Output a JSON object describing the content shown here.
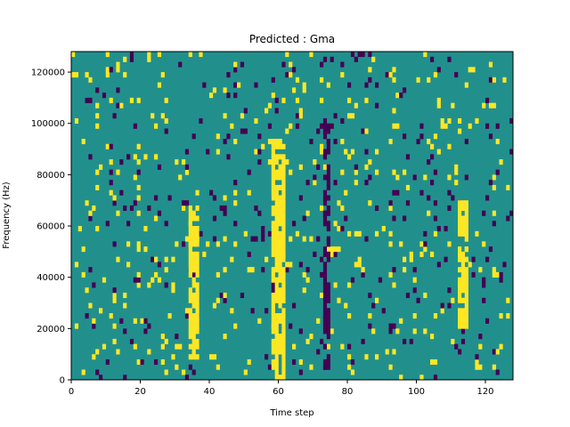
{
  "chart_data": {
    "type": "heatmap",
    "title": "Predicted : Gma",
    "xlabel": "Time step",
    "ylabel": "Frequency (Hz)",
    "xlim": [
      0,
      128
    ],
    "ylim": [
      0,
      128000
    ],
    "xticks": [
      0,
      20,
      40,
      60,
      80,
      100,
      120
    ],
    "yticks": [
      0,
      20000,
      40000,
      60000,
      80000,
      100000,
      120000
    ],
    "grid": false,
    "legend": "none",
    "n_time_steps": 128,
    "n_freq_bins": 64,
    "bin_height_hz": 2000,
    "colors": {
      "background_value_0": "#21908d",
      "value_1": "#fde725",
      "value_minus_1": "#440154"
    },
    "values_description": "mostly background with sparse yellow (+1) and purple (-1) cells; strong vertical bands near time steps 58-62 and 112-115",
    "bands": [
      {
        "value": 1,
        "t_start": 58,
        "t_end": 61,
        "f_start": 0,
        "f_end": 94000
      },
      {
        "value": 1,
        "t_start": 112,
        "t_end": 114,
        "f_start": 20000,
        "f_end": 70000
      },
      {
        "value": 1,
        "t_start": 34,
        "t_end": 36,
        "f_start": 8000,
        "f_end": 68000
      },
      {
        "value": -1,
        "t_start": 73,
        "t_end": 74,
        "f_start": 4000,
        "f_end": 104000
      }
    ]
  }
}
